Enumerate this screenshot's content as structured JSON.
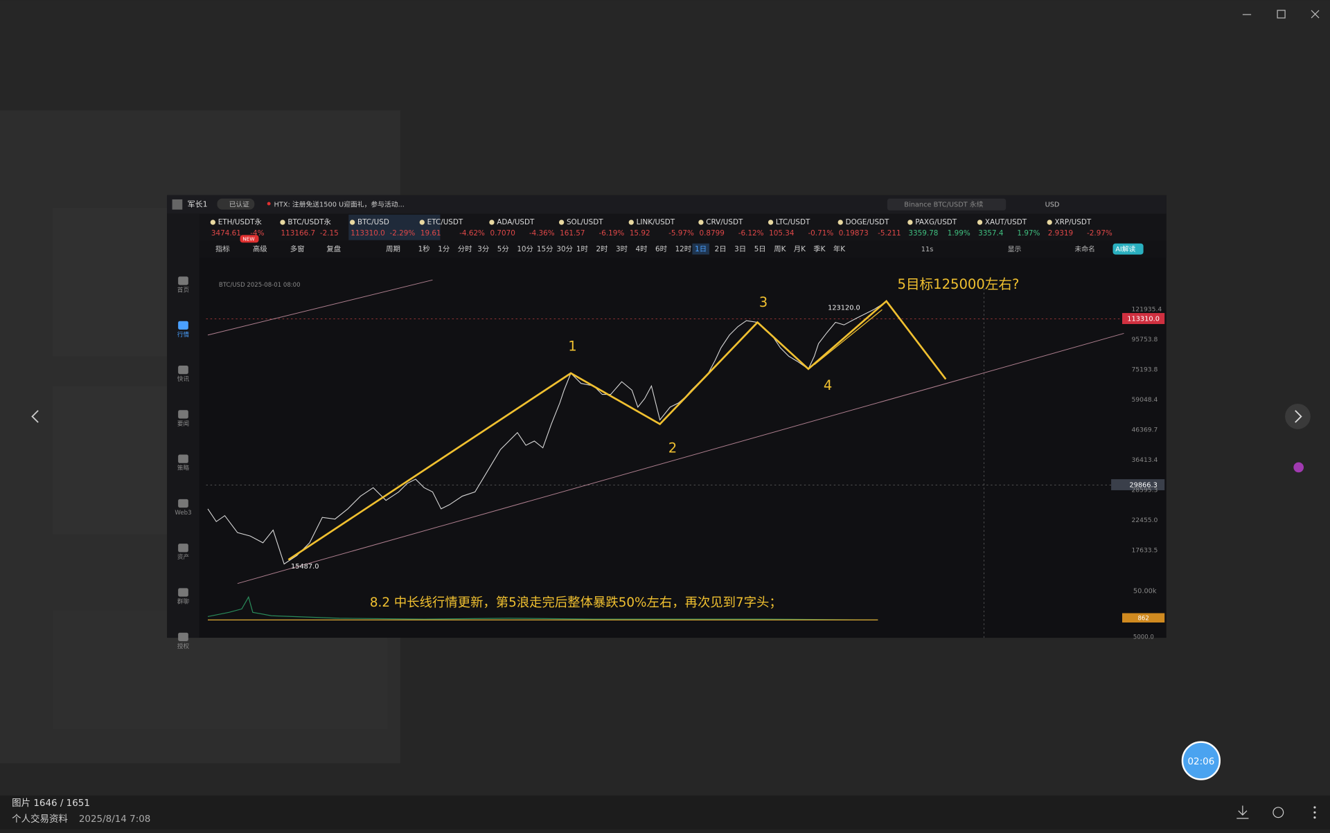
{
  "viewer": {
    "counter": "图片 1646 / 1651",
    "album": "个人交易资料",
    "date": "2025/8/14 7:08",
    "timer": "02:06"
  },
  "app": {
    "user": "军长1",
    "badge": "已认证",
    "notice": "HTX: 注册免送1500 U迎面礼，参与活动...",
    "search": "Binance BTC/USDT 永续",
    "currency": "USD",
    "new_badge": "NEW",
    "sidebar": [
      "首页",
      "行情",
      "快讯",
      "要闻",
      "策略",
      "Web3",
      "资产",
      "群聊",
      "授权"
    ],
    "tickers": [
      {
        "name": "ETH/USDT永",
        "price": "3474.61",
        "change": "-4%"
      },
      {
        "name": "BTC/USDT永",
        "price": "113166.7",
        "change": "-2.15"
      },
      {
        "name": "BTC/USD",
        "price": "113310.0",
        "change": "-2.29%"
      },
      {
        "name": "ETC/USDT",
        "price": "19.61",
        "change": "-4.62%"
      },
      {
        "name": "ADA/USDT",
        "price": "0.7070",
        "change": "-4.36%"
      },
      {
        "name": "SOL/USDT",
        "price": "161.57",
        "change": "-6.19%"
      },
      {
        "name": "LINK/USDT",
        "price": "15.92",
        "change": "-5.97%"
      },
      {
        "name": "CRV/USDT",
        "price": "0.8799",
        "change": "-6.12%"
      },
      {
        "name": "LTC/USDT",
        "price": "105.34",
        "change": "-0.71%"
      },
      {
        "name": "DOGE/USDT",
        "price": "0.19873",
        "change": "-5.211"
      },
      {
        "name": "PAXG/USDT",
        "price": "3359.78",
        "change": "1.99%"
      },
      {
        "name": "XAUT/USDT",
        "price": "3357.4",
        "change": "1.97%"
      },
      {
        "name": "XRP/USDT",
        "price": "2.9319",
        "change": "-2.97%"
      }
    ],
    "tools": [
      "指标",
      "高级",
      "多窗",
      "复盘",
      "周期"
    ],
    "periods": [
      "1秒",
      "1分",
      "分时",
      "3分",
      "5分",
      "10分",
      "15分",
      "30分",
      "1时",
      "2时",
      "3时",
      "4时",
      "6时",
      "12时",
      "1日",
      "2日",
      "3日",
      "5日",
      "周K",
      "月K",
      "季K",
      "年K"
    ],
    "right_tools": [
      "11s",
      "显示",
      "未命名",
      "AI解读"
    ]
  },
  "chart": {
    "symbol_line": "BTC/USD 2025-08-01 08:00",
    "price_axis": [
      "121935.4",
      "95753.8",
      "75193.8",
      "59048.4",
      "46369.7",
      "36413.4",
      "28595.3",
      "22455.0",
      "17633.5"
    ],
    "last_price": "113310.0",
    "cursor_price": "29866.3",
    "volume_axis": [
      "50.00k",
      "5000.0"
    ],
    "volume_last": "862",
    "high_label": "123120.0",
    "low_label": "15487.0",
    "waves": [
      "1",
      "2",
      "3",
      "4"
    ],
    "target_note": "5目标125000左右?",
    "update_note": "8.2 中长线行情更新，第5浪走完后整体暴跌50%左右，再次见到7字头；"
  }
}
